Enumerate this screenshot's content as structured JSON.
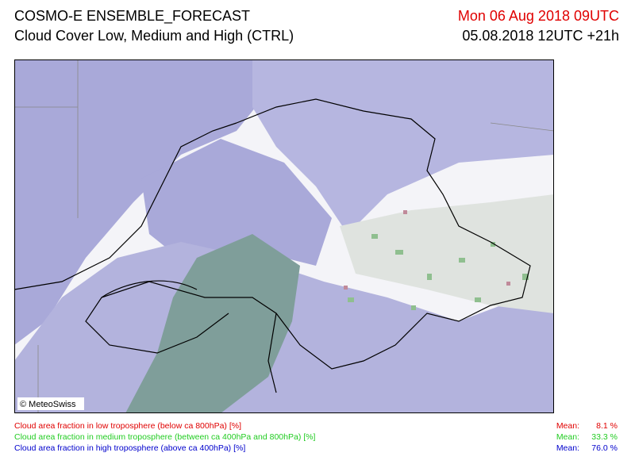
{
  "header": {
    "title": "COSMO-E ENSEMBLE_FORECAST",
    "subtitle": "Cloud Cover Low, Medium and High (CTRL)",
    "valid_time": "Mon 06 Aug 2018 09UTC",
    "run_time": "05.08.2018 12UTC +21h"
  },
  "map": {
    "credit": "© MeteoSwiss"
  },
  "legend": [
    {
      "label": "Cloud area fraction in low troposphere (below ca 800hPa) [%]",
      "mean_label": "Mean:",
      "mean": "8.1 %",
      "color": "#e00000"
    },
    {
      "label": "Cloud area fraction in medium troposphere (between ca 400hPa and 800hPa) [%]",
      "mean_label": "Mean:",
      "mean": "33.3 %",
      "color": "#22cc22"
    },
    {
      "label": "Cloud area fraction in high troposphere (above ca 400hPa) [%]",
      "mean_label": "Mean:",
      "mean": "76.0 %",
      "color": "#0000cc"
    }
  ]
}
